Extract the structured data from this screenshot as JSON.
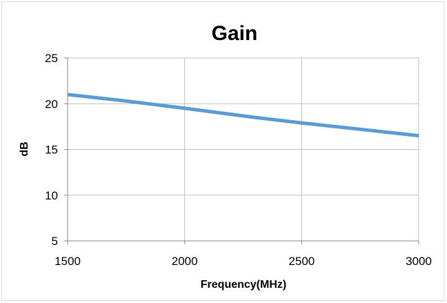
{
  "chart_data": {
    "type": "line",
    "title": "Gain",
    "xlabel": "Frequency(MHz)",
    "ylabel": "dB",
    "xlim": [
      1500,
      3000
    ],
    "ylim": [
      5,
      25
    ],
    "xticks": [
      1500,
      2000,
      2500,
      3000
    ],
    "yticks": [
      5,
      10,
      15,
      20,
      25
    ],
    "grid": true,
    "legend": "none",
    "series": [
      {
        "color": "#5b9bd5",
        "x": [
          1500,
          1750,
          2000,
          2300,
          2500,
          2750,
          3000
        ],
        "y": [
          21.0,
          20.3,
          19.5,
          18.5,
          17.9,
          17.2,
          16.5
        ]
      }
    ]
  }
}
